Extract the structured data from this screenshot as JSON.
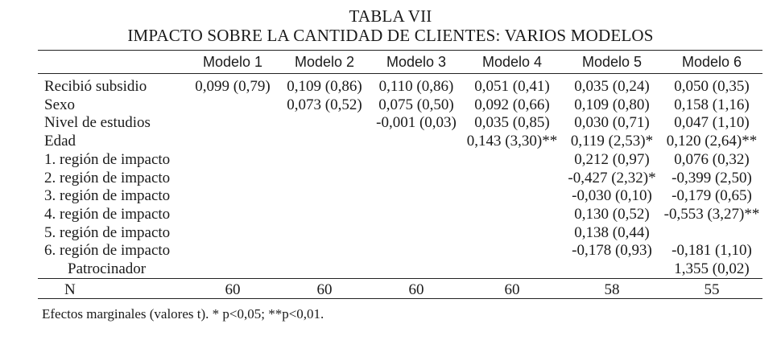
{
  "title": {
    "line1": "TABLA VII",
    "line2": "IMPACTO SOBRE LA CANTIDAD DE CLIENTES: VARIOS MODELOS"
  },
  "columns": [
    "Modelo 1",
    "Modelo 2",
    "Modelo 3",
    "Modelo 4",
    "Modelo 5",
    "Modelo 6"
  ],
  "rows": [
    {
      "label": "Recibió subsidio",
      "values": [
        "0,099 (0,79)",
        "0,109 (0,86)",
        "0,110 (0,86)",
        "0,051 (0,41)",
        "0,035 (0,24)",
        "0,050 (0,35)"
      ]
    },
    {
      "label": "Sexo",
      "values": [
        "",
        "0,073 (0,52)",
        "0,075 (0,50)",
        "0,092 (0,66)",
        "0,109 (0,80)",
        "0,158 (1,16)"
      ]
    },
    {
      "label": "Nivel de estudios",
      "values": [
        "",
        "",
        "-0,001 (0,03)",
        "0,035 (0,85)",
        "0,030 (0,71)",
        "0,047 (1,10)"
      ]
    },
    {
      "label": "Edad",
      "values": [
        "",
        "",
        "",
        "0,143 (3,30)**",
        "0,119 (2,53)*",
        "0,120 (2,64)**"
      ]
    },
    {
      "label": "1. región de impacto",
      "values": [
        "",
        "",
        "",
        "",
        "0,212 (0,97)",
        "0,076 (0,32)"
      ]
    },
    {
      "label": "2. región de impacto",
      "values": [
        "",
        "",
        "",
        "",
        "-0,427 (2,32)*",
        "-0,399 (2,50)"
      ]
    },
    {
      "label": "3. región de impacto",
      "values": [
        "",
        "",
        "",
        "",
        "-0,030 (0,10)",
        "-0,179 (0,65)"
      ]
    },
    {
      "label": "4. región de impacto",
      "values": [
        "",
        "",
        "",
        "",
        "0,130 (0,52)",
        "-0,553 (3,27)**"
      ]
    },
    {
      "label": "5. región de impacto",
      "values": [
        "",
        "",
        "",
        "",
        "0,138 (0,44)",
        ""
      ]
    },
    {
      "label": "6. región de impacto",
      "values": [
        "",
        "",
        "",
        "",
        "-0,178 (0,93)",
        "-0,181 (1,10)"
      ]
    },
    {
      "label": "Patrocinador",
      "values": [
        "",
        "",
        "",
        "",
        "",
        "1,355 (0,02)"
      ]
    }
  ],
  "n_row": {
    "label": "N",
    "values": [
      "60",
      "60",
      "60",
      "60",
      "58",
      "55"
    ]
  },
  "footnote": "Efectos marginales (valores t). * p<0,05; **p<0,01."
}
